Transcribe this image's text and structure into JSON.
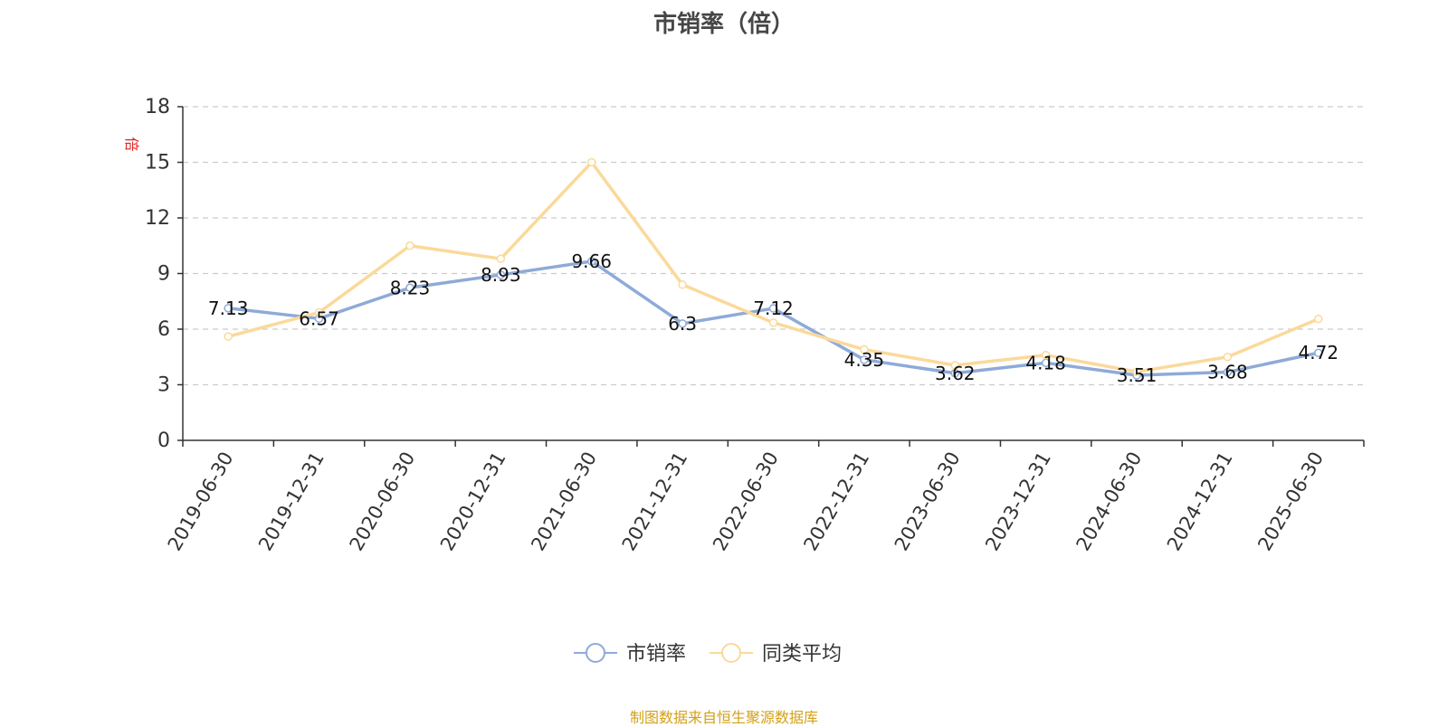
{
  "title": "市销率（倍）",
  "source": "制图数据来自恒生聚源数据库",
  "colors": {
    "series1": "#8eaad8",
    "series2": "#fbd99a",
    "source": "#d4a017",
    "unit": "#e02020",
    "grid": "#cccccc",
    "axis": "#333333"
  },
  "chart_data": {
    "type": "line",
    "title": "市销率（倍）",
    "ylabel": "倍",
    "ylim": [
      0,
      18
    ],
    "yticks": [
      0,
      3,
      6,
      9,
      12,
      15,
      18
    ],
    "grid": true,
    "legend_position": "bottom",
    "categories": [
      "2019-06-30",
      "2019-12-31",
      "2020-06-30",
      "2020-12-31",
      "2021-06-30",
      "2021-12-31",
      "2022-06-30",
      "2022-12-31",
      "2023-06-30",
      "2023-12-31",
      "2024-06-30",
      "2024-12-31",
      "2025-06-30"
    ],
    "series": [
      {
        "name": "市销率",
        "values": [
          7.13,
          6.57,
          8.23,
          8.93,
          9.66,
          6.3,
          7.12,
          4.35,
          3.62,
          4.18,
          3.51,
          3.68,
          4.72
        ],
        "labels": [
          "7.13",
          "6.57",
          "8.23",
          "8.93",
          "9.66",
          "6.3",
          "7.12",
          "4.35",
          "3.62",
          "4.18",
          "3.51",
          "3.68",
          "4.72"
        ],
        "show_labels": true
      },
      {
        "name": "同类平均",
        "values": [
          5.6,
          6.9,
          10.5,
          9.8,
          15.0,
          8.4,
          6.35,
          4.9,
          4.05,
          4.6,
          3.7,
          4.5,
          6.55
        ],
        "show_labels": false
      }
    ]
  }
}
